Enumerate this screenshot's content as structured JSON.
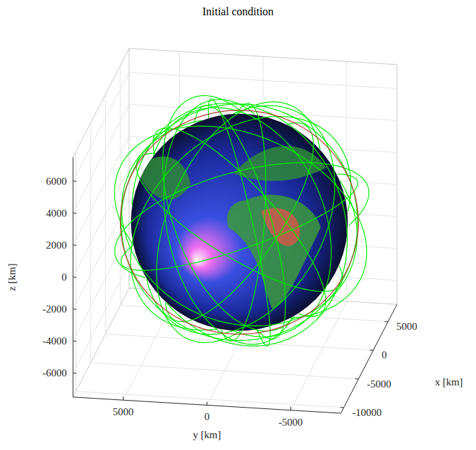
{
  "chart_data": {
    "type": "orbit_3d",
    "title": "Initial condition",
    "x_label": "x [km]",
    "y_label": "y [km]",
    "z_label": "z [km]",
    "xlim": [
      -11000,
      8000
    ],
    "ylim": [
      -8000,
      8000
    ],
    "zlim": [
      -7500,
      7500
    ],
    "xticks": [
      -10000,
      -5000,
      0,
      5000
    ],
    "yticks": [
      -5000,
      0,
      5000
    ],
    "zticks": [
      -6000,
      -4000,
      -2000,
      0,
      2000,
      4000,
      6000
    ],
    "grid": true,
    "earth_radius": 6378,
    "series": [
      {
        "color": "#00ee00",
        "orbits": [
          {
            "a": 7000,
            "e": 0.001,
            "i": 98,
            "raan": 20,
            "argp": 0
          },
          {
            "a": 7200,
            "e": 0,
            "i": 60,
            "raan": 45,
            "argp": 0
          },
          {
            "a": 7400,
            "e": 0.02,
            "i": 75,
            "raan": 130,
            "argp": 40
          },
          {
            "a": 6900,
            "e": 0,
            "i": 52,
            "raan": 200,
            "argp": 0
          },
          {
            "a": 7300,
            "e": 0.02,
            "i": 85,
            "raan": 250,
            "argp": 100
          },
          {
            "a": 7100,
            "e": 0,
            "i": 40,
            "raan": 300,
            "argp": 0
          },
          {
            "a": 7800,
            "e": 0.01,
            "i": 65,
            "raan": 80,
            "argp": 0
          },
          {
            "a": 7300,
            "e": 0.05,
            "i": 110,
            "raan": 160,
            "argp": 200
          },
          {
            "a": 7000,
            "e": 0,
            "i": 30,
            "raan": 10,
            "argp": 0
          },
          {
            "a": 7500,
            "e": 0,
            "i": 97,
            "raan": 330,
            "argp": 0
          },
          {
            "a": 7200,
            "e": 0.02,
            "i": 55,
            "raan": 230,
            "argp": 300
          },
          {
            "a": 6950,
            "e": 0,
            "i": 70,
            "raan": 280,
            "argp": 0
          },
          {
            "a": 7700,
            "e": 0.02,
            "i": 45,
            "raan": 120,
            "argp": 0
          },
          {
            "a": 7050,
            "e": 0,
            "i": 88,
            "raan": 60,
            "argp": 0
          },
          {
            "a": 7250,
            "e": 0.08,
            "i": 63,
            "raan": 345,
            "argp": 270
          },
          {
            "a": 7350,
            "e": 0,
            "i": 20,
            "raan": 170,
            "argp": 0
          },
          {
            "a": 7150,
            "e": 0,
            "i": 100,
            "raan": 210,
            "argp": 0
          },
          {
            "a": 7450,
            "e": 0.01,
            "i": 80,
            "raan": 20,
            "argp": 150
          }
        ]
      },
      {
        "color": "#b03a2e",
        "orbits": [
          {
            "a": 7000,
            "e": 0,
            "i": 90,
            "raan": 100,
            "argp": 0
          }
        ]
      }
    ]
  }
}
